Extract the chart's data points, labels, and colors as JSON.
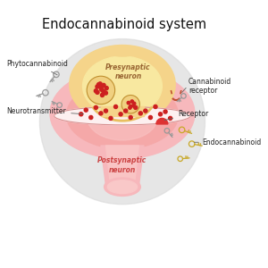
{
  "title": "Endocannabinoid system",
  "title_fontsize": 10.5,
  "bg_color": "#ffffff",
  "presynaptic_color": "#f5d48a",
  "presynaptic_inner_color": "#e8c060",
  "presynaptic_label": "Presynaptic\nneuron",
  "postsynaptic_color": "#f7b8bc",
  "postsynaptic_inner_color": "#f09090",
  "postsynaptic_label": "Postsynaptic\nneuron",
  "synapse_top_color": "#fde8e8",
  "synapse_border": "#d89090",
  "large_circle_color": "#dcdcdc",
  "large_circle_alpha": 0.7,
  "label_phyto": "Phytocannabinoid",
  "label_neuro": "Neurotransmitter",
  "label_receptor": "Receptor",
  "label_cannabinoid_receptor": "Cannabinoid\nreceptor",
  "label_endocannabinoid": "Endocannabinoid",
  "dot_color": "#cc2020",
  "vesicle_fill": "#f0d080",
  "vesicle_border": "#c09030",
  "key_color": "#c8a828",
  "gray_key_color": "#999999",
  "label_fontsize": 5.5,
  "label_color": "#222222"
}
